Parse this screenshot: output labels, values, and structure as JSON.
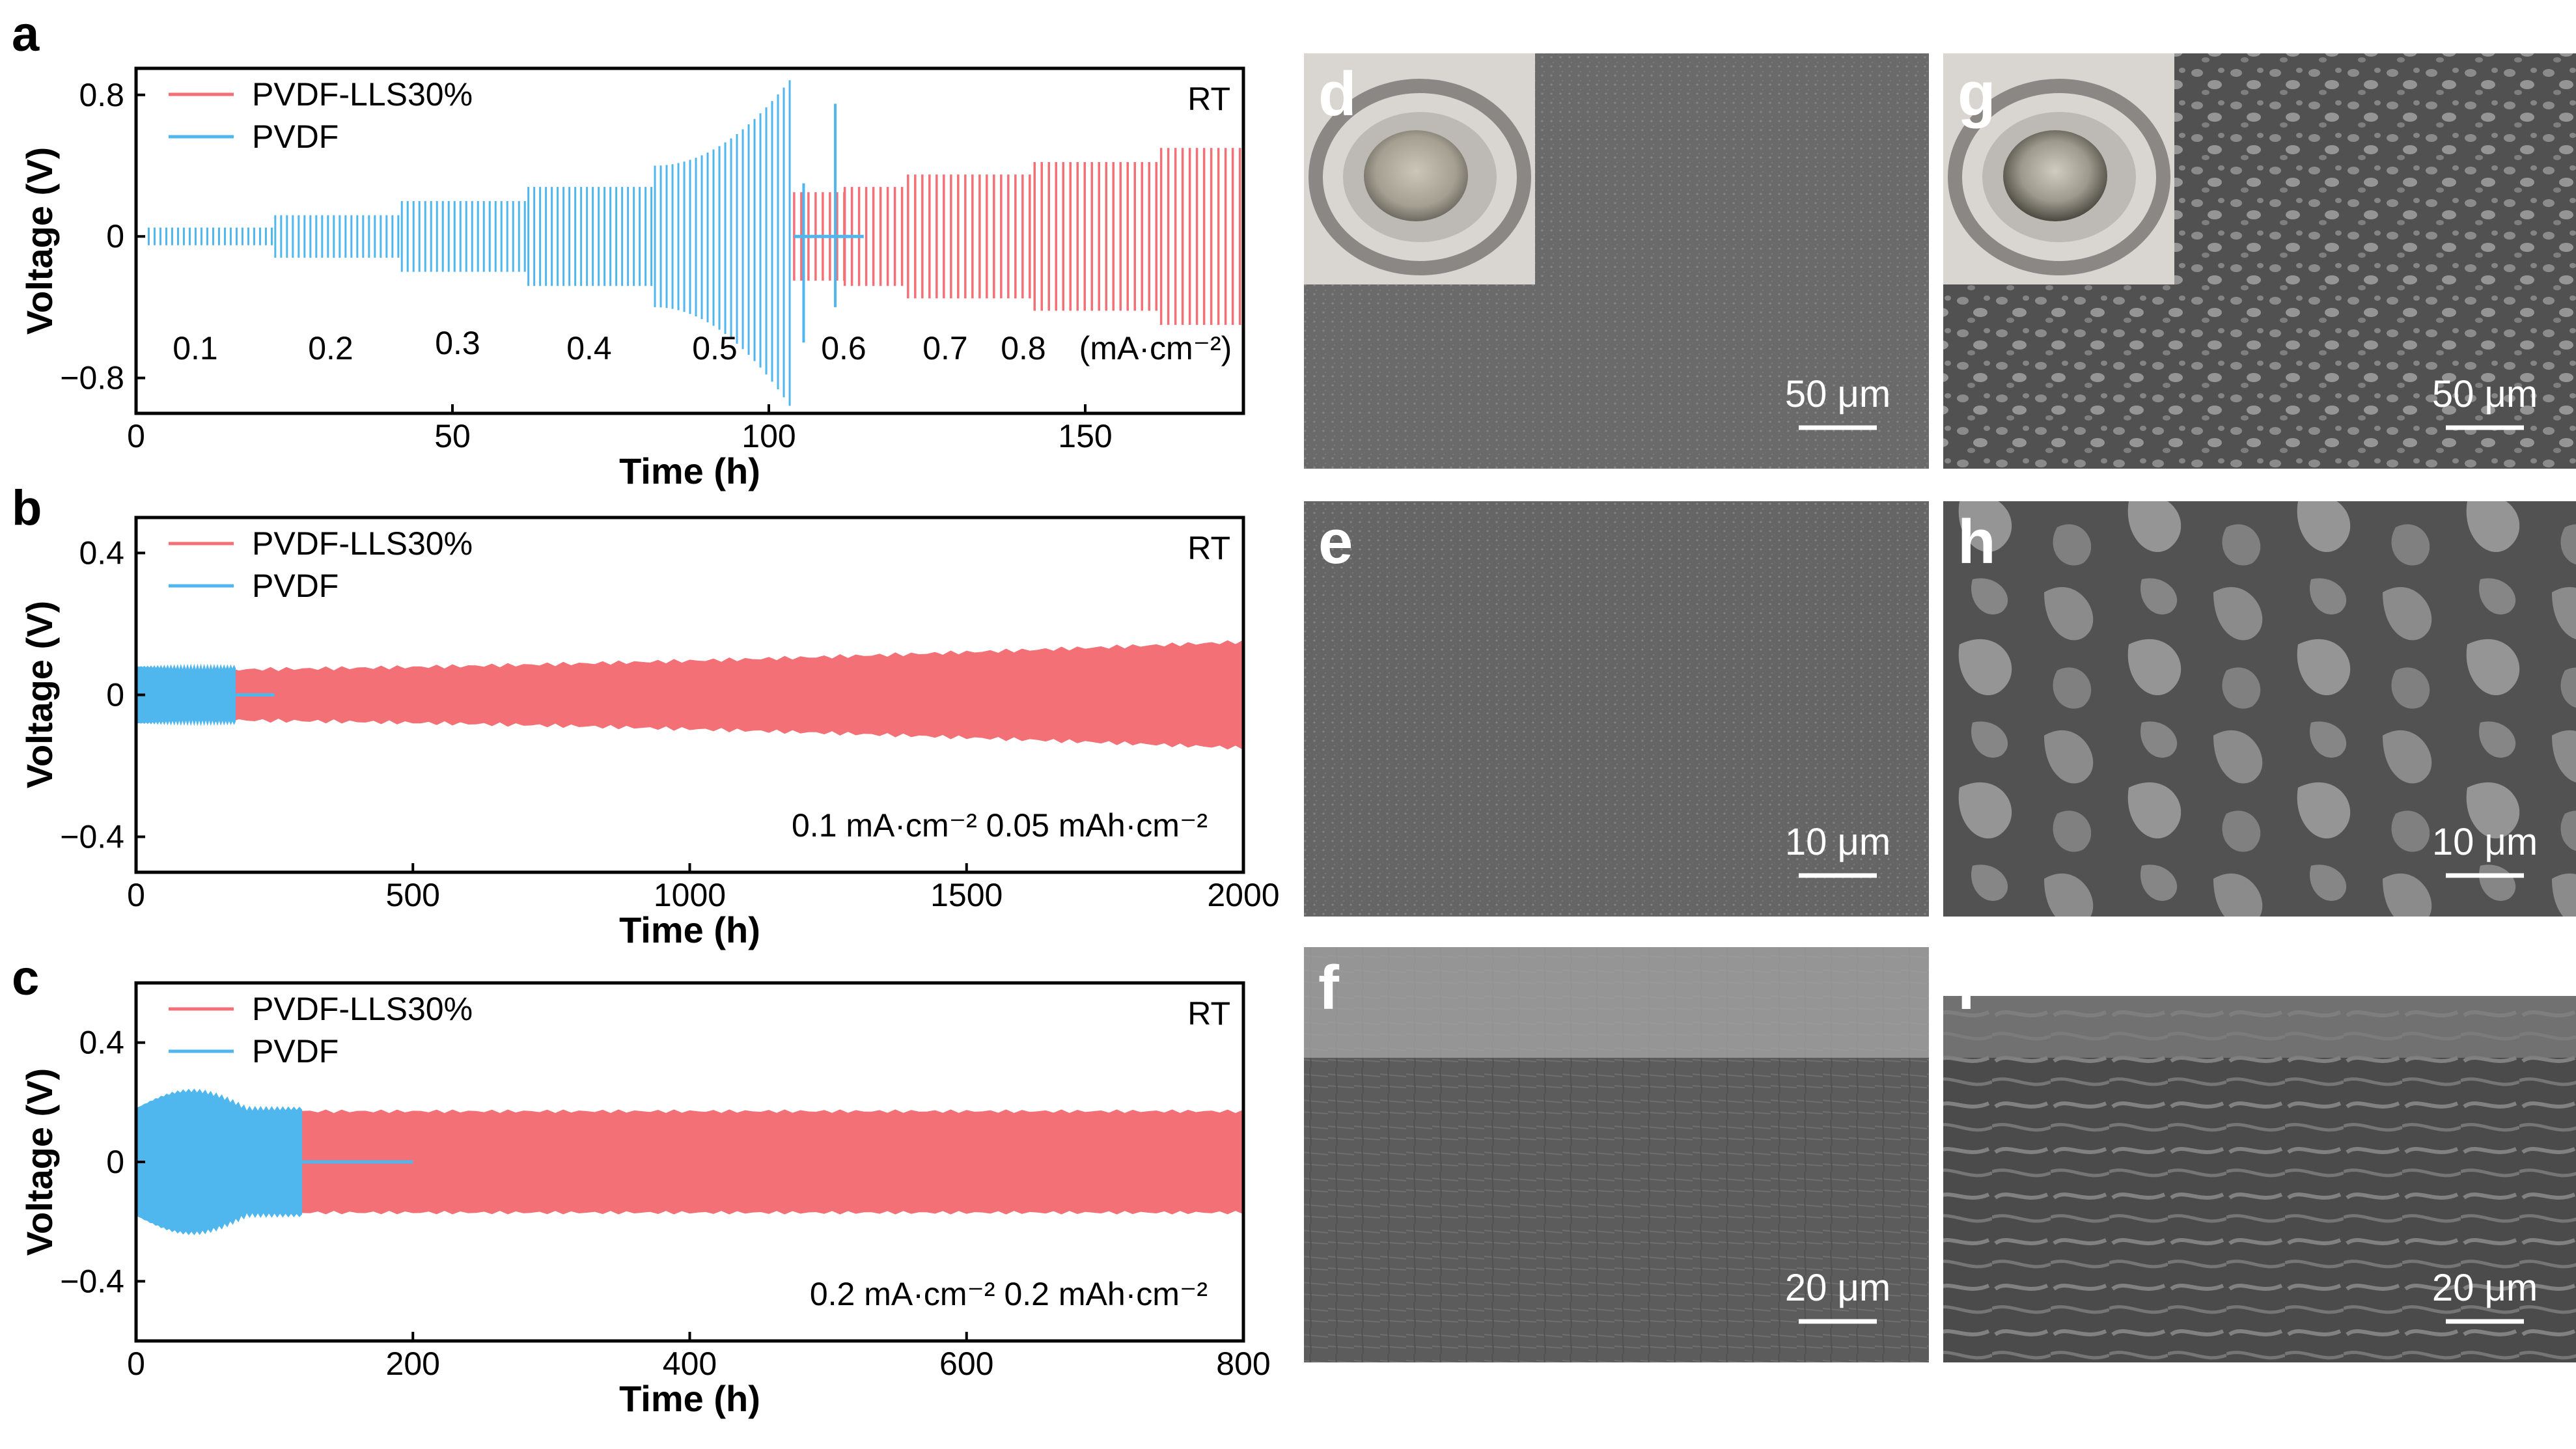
{
  "chart_data": [
    {
      "panel": "a",
      "type": "line",
      "title": "",
      "xlabel": "Time (h)",
      "ylabel": "Voltage (V)",
      "xlim": [
        0,
        175
      ],
      "ylim": [
        -1.0,
        0.95
      ],
      "xticks": [
        0,
        50,
        100,
        150
      ],
      "ytick_labels": [
        "0.8",
        "0",
        "−0.8"
      ],
      "yticks": [
        0.8,
        0,
        -0.8
      ],
      "corner_label": "RT",
      "legend_position": "top-left",
      "step_labels": [
        "0.1",
        "0.2",
        "0.3",
        "0.4",
        "0.5",
        "0.6",
        "0.7",
        "0.8",
        "(mA·cm⁻²)"
      ],
      "series": [
        {
          "name": "PVDF-LLS30%",
          "color": "#f27076",
          "envelope": [
            {
              "x": [
                104,
                112
              ],
              "amp": 0.25
            },
            {
              "x": [
                112,
                122
              ],
              "amp": 0.28
            },
            {
              "x": [
                122,
                142
              ],
              "amp": 0.35
            },
            {
              "x": [
                142,
                162
              ],
              "amp": 0.42
            },
            {
              "x": [
                162,
                175
              ],
              "amp": 0.5
            }
          ]
        },
        {
          "name": "PVDF",
          "color": "#4fb6ee",
          "envelope": [
            {
              "x": [
                2,
                22
              ],
              "amp": 0.05
            },
            {
              "x": [
                22,
                42
              ],
              "amp": 0.12
            },
            {
              "x": [
                42,
                62
              ],
              "amp": 0.2
            },
            {
              "x": [
                62,
                82
              ],
              "amp": 0.28
            },
            {
              "x": [
                82,
                104
              ],
              "amp": 0.4
            }
          ],
          "peak_max": 0.92,
          "peak_min": -1.0
        }
      ]
    },
    {
      "panel": "b",
      "type": "line",
      "title": "",
      "xlabel": "Time (h)",
      "ylabel": "Voltage (V)",
      "xlim": [
        0,
        2000
      ],
      "ylim": [
        -0.5,
        0.5
      ],
      "xticks": [
        0,
        500,
        1000,
        1500,
        2000
      ],
      "ytick_labels": [
        "0.4",
        "0",
        "−0.4"
      ],
      "yticks": [
        0.4,
        0,
        -0.4
      ],
      "corner_label": "RT",
      "legend_position": "top-left",
      "condition_label": "0.1 mA·cm⁻²  0.05 mAh·cm⁻²",
      "series": [
        {
          "name": "PVDF-LLS30%",
          "color": "#f27076",
          "x_range": [
            0,
            2000
          ],
          "amp_start": 0.07,
          "amp_end": 0.15
        },
        {
          "name": "PVDF",
          "color": "#4fb6ee",
          "x_range": [
            0,
            180
          ],
          "amp": 0.08,
          "tail_end": 250
        }
      ]
    },
    {
      "panel": "c",
      "type": "line",
      "title": "",
      "xlabel": "Time (h)",
      "ylabel": "Voltage (V)",
      "xlim": [
        0,
        800
      ],
      "ylim": [
        -0.6,
        0.6
      ],
      "xticks": [
        0,
        200,
        400,
        600,
        800
      ],
      "ytick_labels": [
        "0.4",
        "0",
        "−0.4"
      ],
      "yticks": [
        0.4,
        0,
        -0.4
      ],
      "corner_label": "RT",
      "legend_position": "top-left",
      "condition_label": "0.2 mA·cm⁻²  0.2 mAh·cm⁻²",
      "series": [
        {
          "name": "PVDF-LLS30%",
          "color": "#f27076",
          "x_range": [
            0,
            800
          ],
          "amp": 0.17
        },
        {
          "name": "PVDF",
          "color": "#4fb6ee",
          "x_range": [
            0,
            120
          ],
          "amp": 0.24,
          "tail_end": 200
        }
      ]
    }
  ],
  "sem_panels": [
    {
      "label": "d",
      "scale": "50 μm",
      "has_inset": true
    },
    {
      "label": "g",
      "scale": "50 μm",
      "has_inset": true
    },
    {
      "label": "e",
      "scale": "10 μm",
      "has_inset": false
    },
    {
      "label": "h",
      "scale": "10 μm",
      "has_inset": false
    },
    {
      "label": "f",
      "scale": "20 μm",
      "has_inset": false
    },
    {
      "label": "i",
      "scale": "20 μm",
      "has_inset": false
    }
  ]
}
